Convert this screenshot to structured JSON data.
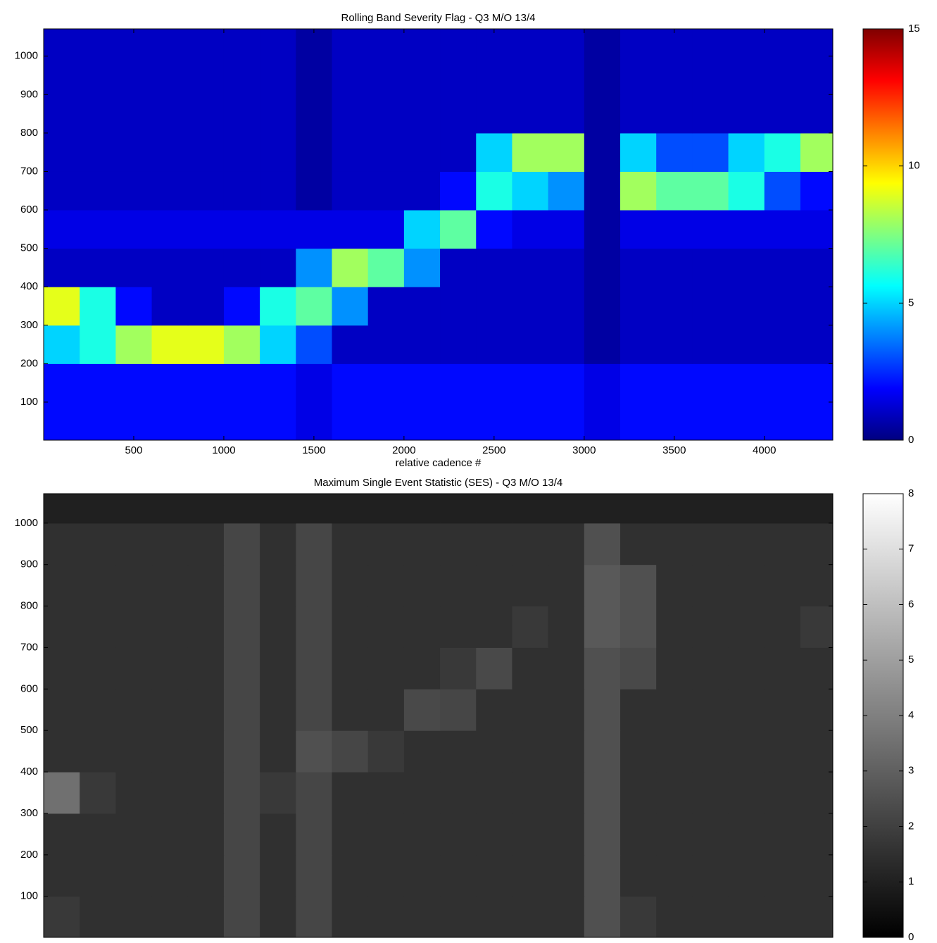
{
  "chart_data": [
    {
      "type": "heatmap",
      "title": "Rolling Band Severity Flag - Q3 M/O 13/4",
      "xlabel": "relative cadence #",
      "colormap": "jet",
      "x": [
        0,
        200,
        400,
        600,
        800,
        1000,
        1200,
        1400,
        1600,
        1800,
        2000,
        2200,
        2400,
        2600,
        2800,
        3000,
        3200,
        3400,
        3600,
        3800,
        4000,
        4200,
        4380
      ],
      "y": [
        1,
        100,
        200,
        300,
        400,
        500,
        600,
        700,
        800,
        900,
        1000,
        1071
      ],
      "z": [
        [
          2,
          2,
          2,
          2,
          2,
          2,
          2,
          1.5,
          2,
          2,
          2,
          2,
          2,
          2,
          2,
          1.5,
          2,
          2,
          2,
          2,
          2,
          2
        ],
        [
          2,
          2,
          2,
          2,
          2,
          2,
          2,
          1.5,
          2,
          2,
          2,
          2,
          2,
          2,
          2,
          1.5,
          2,
          2,
          2,
          2,
          2,
          2
        ],
        [
          5,
          6,
          8,
          9,
          9,
          8,
          5,
          3,
          1,
          1,
          1,
          1,
          1,
          1,
          1,
          0.5,
          1,
          1,
          1,
          1,
          1,
          1
        ],
        [
          9,
          6,
          2,
          1,
          1,
          2,
          6,
          7,
          4,
          1,
          1,
          1,
          1,
          1,
          1,
          0.5,
          1,
          1,
          1,
          1,
          1,
          1
        ],
        [
          1,
          1,
          1,
          1,
          1,
          1,
          1,
          4,
          8,
          7,
          4,
          1,
          1,
          1,
          1,
          0.5,
          1,
          1,
          1,
          1,
          1,
          1
        ],
        [
          1.5,
          1.5,
          1.5,
          1.5,
          1.5,
          1.5,
          1.5,
          1.5,
          1.5,
          1.5,
          5,
          7,
          2,
          1.5,
          1.5,
          0.5,
          1.5,
          1.5,
          1.5,
          1.5,
          1.5,
          1.5
        ],
        [
          1,
          1,
          1,
          1,
          1,
          1,
          1,
          0.5,
          1,
          1,
          1,
          2,
          6,
          5,
          4,
          0.5,
          8,
          7,
          7,
          6,
          3,
          2
        ],
        [
          1,
          1,
          1,
          1,
          1,
          1,
          1,
          0.5,
          1,
          1,
          1,
          1,
          5,
          8,
          8,
          0.5,
          5,
          3,
          3,
          5,
          6,
          8
        ],
        [
          1,
          1,
          1,
          1,
          1,
          1,
          1,
          0.5,
          1,
          1,
          1,
          1,
          1,
          1,
          1,
          0.5,
          1,
          1,
          1,
          1,
          1,
          1
        ],
        [
          1,
          1,
          1,
          1,
          1,
          1,
          1,
          0.5,
          1,
          1,
          1,
          1,
          1,
          1,
          1,
          0.5,
          1,
          1,
          1,
          1,
          1,
          1
        ],
        [
          1,
          1,
          1,
          1,
          1,
          1,
          1,
          0.5,
          1,
          1,
          1,
          1,
          1,
          1,
          1,
          0.5,
          1,
          1,
          1,
          1,
          1,
          1
        ]
      ],
      "xlim": [
        0,
        4380
      ],
      "ylim": [
        1,
        1071
      ],
      "xticks": [
        500,
        1000,
        1500,
        2000,
        2500,
        3000,
        3500,
        4000
      ],
      "yticks": [
        100,
        200,
        300,
        400,
        500,
        600,
        700,
        800,
        900,
        1000
      ],
      "clim": [
        0,
        15
      ],
      "cticks": [
        0,
        5,
        10,
        15
      ]
    },
    {
      "type": "heatmap",
      "title": "Maximum Single Event Statistic (SES) - Q3 M/O 13/4",
      "colormap": "gray",
      "x": [
        0,
        200,
        400,
        600,
        800,
        1000,
        1200,
        1400,
        1600,
        1800,
        2000,
        2200,
        2400,
        2600,
        2800,
        3000,
        3200,
        3400,
        3600,
        3800,
        4000,
        4200,
        4380
      ],
      "y": [
        1,
        100,
        200,
        300,
        400,
        500,
        600,
        700,
        800,
        900,
        1000,
        1071
      ],
      "z": [
        [
          1.8,
          1.5,
          1.5,
          1.5,
          1.5,
          2.2,
          1.5,
          2.2,
          1.5,
          1.5,
          1.5,
          1.5,
          1.5,
          1.5,
          1.5,
          2.5,
          1.8,
          1.5,
          1.5,
          1.5,
          1.5,
          1.5
        ],
        [
          1.5,
          1.5,
          1.5,
          1.5,
          1.5,
          2.2,
          1.5,
          2.2,
          1.5,
          1.5,
          1.5,
          1.5,
          1.5,
          1.5,
          1.5,
          2.5,
          1.5,
          1.5,
          1.5,
          1.5,
          1.5,
          1.5
        ],
        [
          1.5,
          1.5,
          1.5,
          1.5,
          1.5,
          2.2,
          1.5,
          2.2,
          1.5,
          1.5,
          1.5,
          1.5,
          1.5,
          1.5,
          1.5,
          2.5,
          1.5,
          1.5,
          1.5,
          1.5,
          1.5,
          1.5
        ],
        [
          3.5,
          1.8,
          1.5,
          1.5,
          1.5,
          2.2,
          1.8,
          2.2,
          1.5,
          1.5,
          1.5,
          1.5,
          1.5,
          1.5,
          1.5,
          2.5,
          1.5,
          1.5,
          1.5,
          1.5,
          1.5,
          1.5
        ],
        [
          1.5,
          1.5,
          1.5,
          1.5,
          1.5,
          2.2,
          1.5,
          2.5,
          2.2,
          1.8,
          1.5,
          1.5,
          1.5,
          1.5,
          1.5,
          2.5,
          1.5,
          1.5,
          1.5,
          1.5,
          1.5,
          1.5
        ],
        [
          1.5,
          1.5,
          1.5,
          1.5,
          1.5,
          2.2,
          1.5,
          2.2,
          1.5,
          1.5,
          2.3,
          2.2,
          1.5,
          1.5,
          1.5,
          2.5,
          1.5,
          1.5,
          1.5,
          1.5,
          1.5,
          1.5
        ],
        [
          1.5,
          1.5,
          1.5,
          1.5,
          1.5,
          2.2,
          1.5,
          2.2,
          1.5,
          1.5,
          1.5,
          1.8,
          2.3,
          1.5,
          1.5,
          2.5,
          2.3,
          1.5,
          1.5,
          1.5,
          1.5,
          1.5
        ],
        [
          1.5,
          1.5,
          1.5,
          1.5,
          1.5,
          2.2,
          1.5,
          2.2,
          1.5,
          1.5,
          1.5,
          1.5,
          1.5,
          1.8,
          1.5,
          2.8,
          2.5,
          1.5,
          1.5,
          1.5,
          1.5,
          1.8
        ],
        [
          1.5,
          1.5,
          1.5,
          1.5,
          1.5,
          2.2,
          1.5,
          2.2,
          1.5,
          1.5,
          1.5,
          1.5,
          1.5,
          1.5,
          1.5,
          2.8,
          2.5,
          1.5,
          1.5,
          1.5,
          1.5,
          1.5
        ],
        [
          1.5,
          1.5,
          1.5,
          1.5,
          1.5,
          2.2,
          1.5,
          2.2,
          1.5,
          1.5,
          1.5,
          1.5,
          1.5,
          1.5,
          1.5,
          2.5,
          1.5,
          1.5,
          1.5,
          1.5,
          1.5,
          1.5
        ],
        [
          1,
          1,
          1,
          1,
          1,
          1,
          1,
          1,
          1,
          1,
          1,
          1,
          1,
          1,
          1,
          1,
          1,
          1,
          1,
          1,
          1,
          1
        ]
      ],
      "xlim": [
        0,
        4380
      ],
      "ylim": [
        1,
        1071
      ],
      "yticks": [
        100,
        200,
        300,
        400,
        500,
        600,
        700,
        800,
        900,
        1000
      ],
      "clim": [
        0,
        8
      ],
      "cticks": [
        0,
        1,
        2,
        3,
        4,
        5,
        6,
        7,
        8
      ]
    }
  ]
}
